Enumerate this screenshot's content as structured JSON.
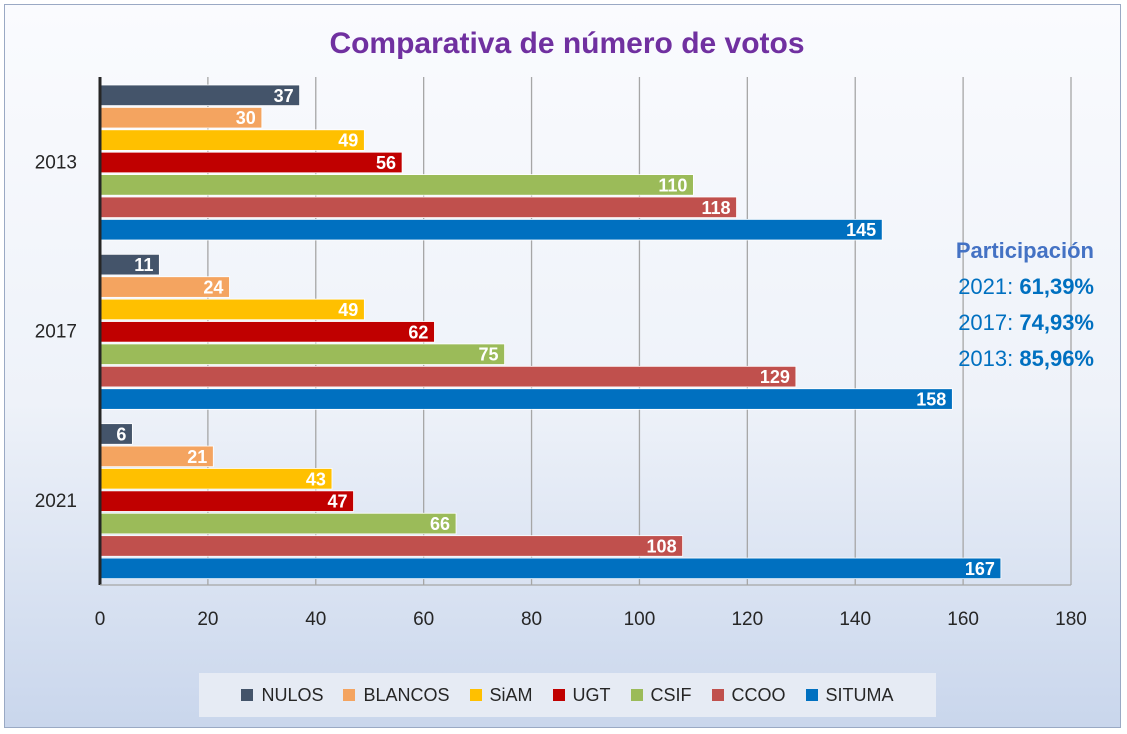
{
  "chart_data": {
    "type": "bar",
    "orientation": "horizontal",
    "title": "Comparativa de número de votos",
    "categories": [
      "2013",
      "2017",
      "2021"
    ],
    "xlim": [
      0,
      180
    ],
    "x_ticks": [
      "0",
      "20",
      "40",
      "60",
      "80",
      "100",
      "120",
      "140",
      "160",
      "180"
    ],
    "grid": true,
    "legend_position": "bottom",
    "series": [
      {
        "name": "NULOS",
        "color": "#44546a",
        "values": [
          37,
          11,
          6
        ]
      },
      {
        "name": "BLANCOS",
        "color": "#f4a460",
        "values": [
          30,
          24,
          21
        ]
      },
      {
        "name": "SiAM",
        "color": "#ffc000",
        "values": [
          49,
          49,
          43
        ]
      },
      {
        "name": "UGT",
        "color": "#c00000",
        "values": [
          56,
          62,
          47
        ]
      },
      {
        "name": "CSIF",
        "color": "#9bbb59",
        "values": [
          110,
          75,
          66
        ]
      },
      {
        "name": "CCOO",
        "color": "#c0504d",
        "values": [
          118,
          129,
          108
        ]
      },
      {
        "name": "SITUMA",
        "color": "#0070c0",
        "values": [
          145,
          158,
          167
        ]
      }
    ],
    "annotations": {
      "participation_title": "Participación",
      "rows": [
        {
          "year_label": "2021:",
          "value": "61,39%"
        },
        {
          "year_label": "2017:",
          "value": "74,93%"
        },
        {
          "year_label": "2013:",
          "value": "85,96%"
        }
      ]
    }
  }
}
